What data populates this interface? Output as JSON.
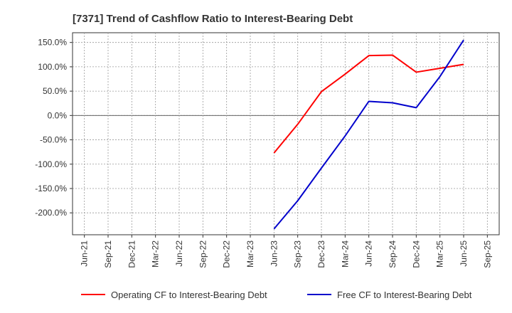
{
  "chart_data": {
    "type": "line",
    "title": "[7371]  Trend of Cashflow Ratio to Interest-Bearing Debt",
    "xlabel": "",
    "ylabel": "",
    "categories": [
      "Jun-21",
      "Sep-21",
      "Dec-21",
      "Mar-22",
      "Jun-22",
      "Sep-22",
      "Dec-22",
      "Mar-23",
      "Jun-23",
      "Sep-23",
      "Dec-23",
      "Mar-24",
      "Jun-24",
      "Sep-24",
      "Dec-24",
      "Mar-25",
      "Jun-25",
      "Sep-25"
    ],
    "ylim": [
      -245,
      170
    ],
    "yticks": [
      {
        "value": 150,
        "label": "150.0%"
      },
      {
        "value": 100,
        "label": "100.0%"
      },
      {
        "value": 50,
        "label": "50.0%"
      },
      {
        "value": 0,
        "label": "0.0%"
      },
      {
        "value": -50,
        "label": "-50.0%"
      },
      {
        "value": -100,
        "label": "-100.0%"
      },
      {
        "value": -150,
        "label": "-150.0%"
      },
      {
        "value": -200,
        "label": "-200.0%"
      }
    ],
    "grid": true,
    "legend_position": "bottom",
    "series": [
      {
        "name": "Operating CF to Interest-Bearing Debt",
        "color": "#ff0000",
        "values": [
          null,
          null,
          null,
          null,
          null,
          null,
          null,
          null,
          -77,
          -18,
          49,
          85,
          123,
          124,
          89,
          97,
          105,
          null
        ]
      },
      {
        "name": "Free CF to Interest-Bearing Debt",
        "color": "#0000cc",
        "values": [
          null,
          null,
          null,
          null,
          null,
          null,
          null,
          null,
          -233,
          -175,
          -108,
          -42,
          29,
          26,
          16,
          80,
          155,
          null
        ]
      }
    ]
  }
}
